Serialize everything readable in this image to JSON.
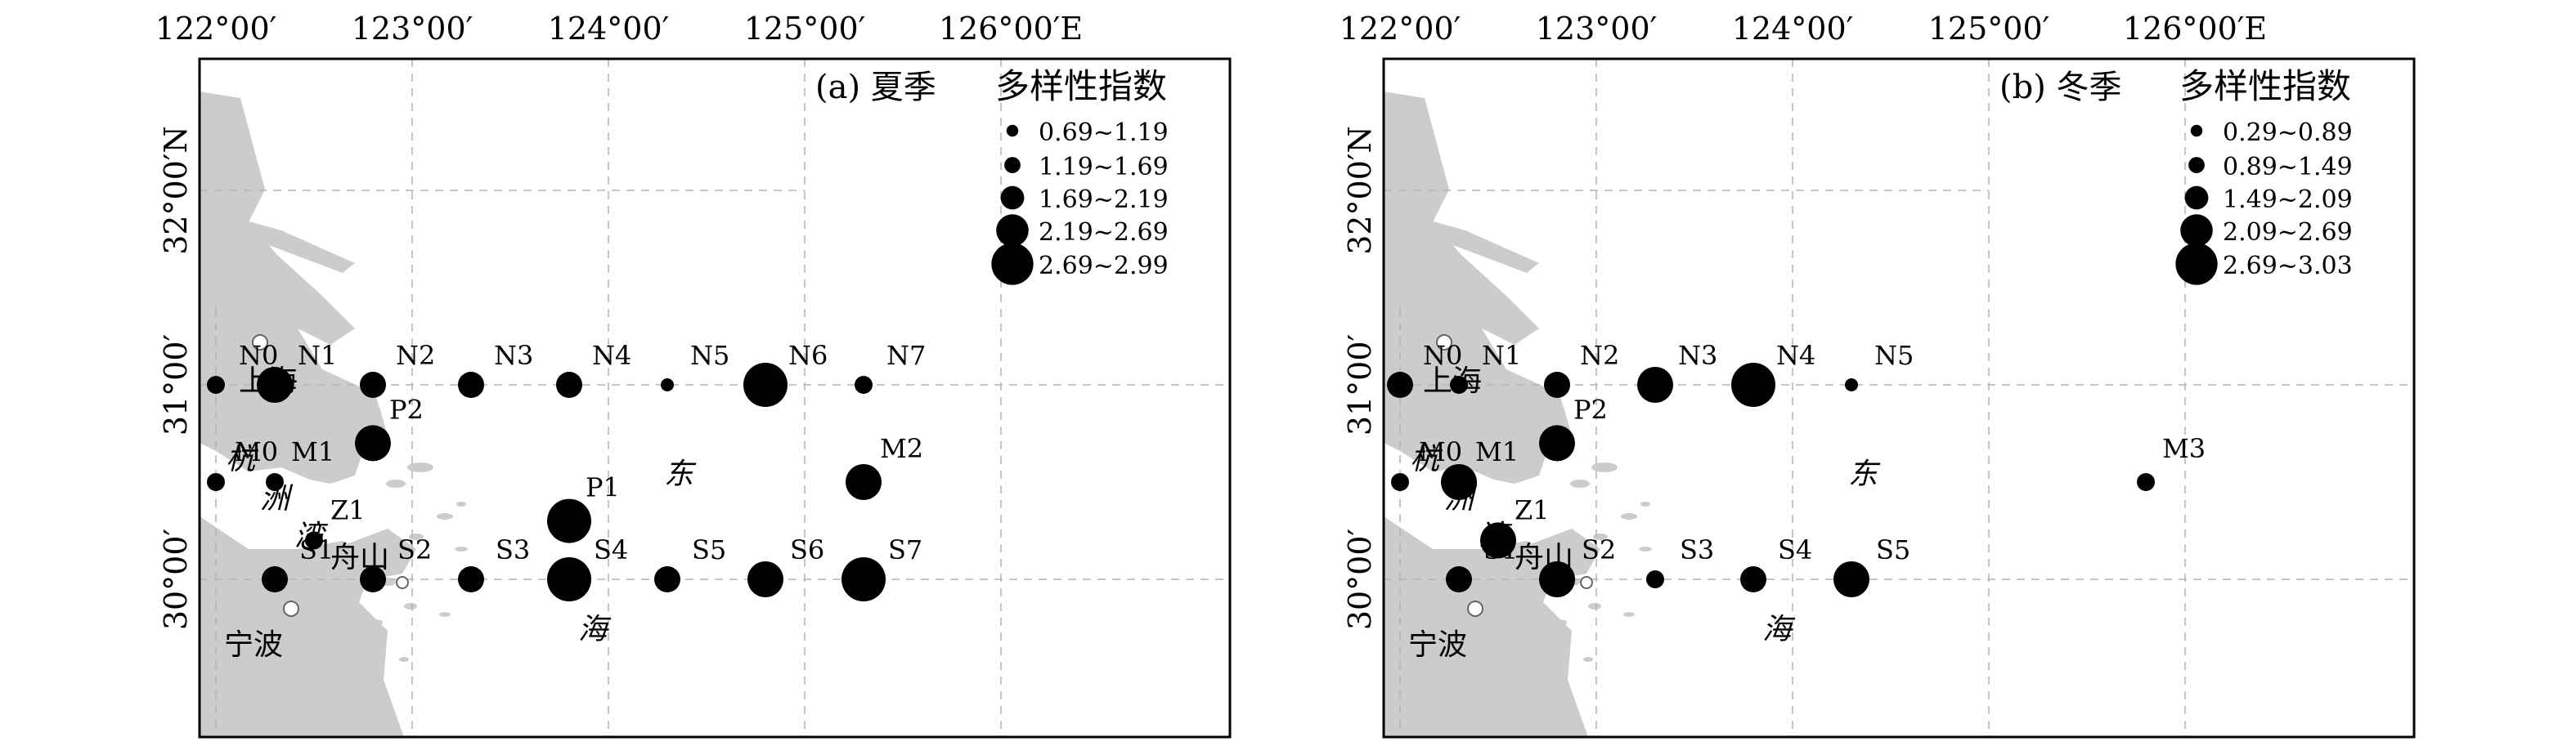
{
  "lon_labels": [
    "122°00′",
    "123°00′",
    "124°00′",
    "125°00′",
    "126°00′E"
  ],
  "lat_labels": [
    "32°00′N",
    "31°00′",
    "30°00′"
  ],
  "place_labels": {
    "shanghai": "上海",
    "ningbo": "宁波",
    "zhoushan": "舟山",
    "hangzhou_bay": [
      "杭",
      "洲",
      "湾"
    ],
    "east_sea": [
      "东",
      "海"
    ]
  },
  "colors": {
    "land": "#cccccc",
    "station": "#000000",
    "grid": "#b3b3b3",
    "city_marker": "#ffffff"
  },
  "panels": [
    {
      "title": "(a) 夏季",
      "legend_title": "多样性指数",
      "legend": [
        "0.69~1.19",
        "1.19~1.69",
        "1.69~2.19",
        "2.19~2.69",
        "2.69~2.99"
      ],
      "stations": [
        {
          "name": "N0",
          "lon": 122.0,
          "lat": 31.0,
          "class": 2
        },
        {
          "name": "N1",
          "lon": 122.3,
          "lat": 31.0,
          "class": 4
        },
        {
          "name": "N2",
          "lon": 122.8,
          "lat": 31.0,
          "class": 3
        },
        {
          "name": "N3",
          "lon": 123.3,
          "lat": 31.0,
          "class": 3
        },
        {
          "name": "N4",
          "lon": 123.8,
          "lat": 31.0,
          "class": 3
        },
        {
          "name": "N5",
          "lon": 124.3,
          "lat": 31.0,
          "class": 1
        },
        {
          "name": "N6",
          "lon": 124.8,
          "lat": 31.0,
          "class": 5
        },
        {
          "name": "N7",
          "lon": 125.3,
          "lat": 31.0,
          "class": 2
        },
        {
          "name": "P2",
          "lon": 122.8,
          "lat": 30.7,
          "class": 4
        },
        {
          "name": "M0",
          "lon": 122.0,
          "lat": 30.5,
          "class": 2
        },
        {
          "name": "M1",
          "lon": 122.3,
          "lat": 30.5,
          "class": 2
        },
        {
          "name": "M2",
          "lon": 125.3,
          "lat": 30.5,
          "class": 4
        },
        {
          "name": "P1",
          "lon": 123.8,
          "lat": 30.3,
          "class": 5
        },
        {
          "name": "Z1",
          "lon": 122.5,
          "lat": 30.2,
          "class": 2
        },
        {
          "name": "S1",
          "lon": 122.3,
          "lat": 30.0,
          "class": 3
        },
        {
          "name": "S2",
          "lon": 122.8,
          "lat": 30.0,
          "class": 3
        },
        {
          "name": "S3",
          "lon": 123.3,
          "lat": 30.0,
          "class": 3
        },
        {
          "name": "S4",
          "lon": 123.8,
          "lat": 30.0,
          "class": 5
        },
        {
          "name": "S5",
          "lon": 124.3,
          "lat": 30.0,
          "class": 3
        },
        {
          "name": "S6",
          "lon": 124.8,
          "lat": 30.0,
          "class": 4
        },
        {
          "name": "S7",
          "lon": 125.3,
          "lat": 30.0,
          "class": 5
        }
      ]
    },
    {
      "title": "(b) 冬季",
      "legend_title": "多样性指数",
      "legend": [
        "0.29~0.89",
        "0.89~1.49",
        "1.49~2.09",
        "2.09~2.69",
        "2.69~3.03"
      ],
      "stations": [
        {
          "name": "N0",
          "lon": 122.0,
          "lat": 31.0,
          "class": 3
        },
        {
          "name": "N1",
          "lon": 122.3,
          "lat": 31.0,
          "class": 2
        },
        {
          "name": "N2",
          "lon": 122.8,
          "lat": 31.0,
          "class": 3
        },
        {
          "name": "N3",
          "lon": 123.3,
          "lat": 31.0,
          "class": 4
        },
        {
          "name": "N4",
          "lon": 123.8,
          "lat": 31.0,
          "class": 5
        },
        {
          "name": "N5",
          "lon": 124.3,
          "lat": 31.0,
          "class": 1
        },
        {
          "name": "P2",
          "lon": 122.8,
          "lat": 30.7,
          "class": 4
        },
        {
          "name": "M0",
          "lon": 122.0,
          "lat": 30.5,
          "class": 2
        },
        {
          "name": "M1",
          "lon": 122.3,
          "lat": 30.5,
          "class": 4
        },
        {
          "name": "M3",
          "lon": 125.8,
          "lat": 30.5,
          "class": 2
        },
        {
          "name": "Z1",
          "lon": 122.5,
          "lat": 30.2,
          "class": 4
        },
        {
          "name": "S1",
          "lon": 122.3,
          "lat": 30.0,
          "class": 3
        },
        {
          "name": "S2",
          "lon": 122.8,
          "lat": 30.0,
          "class": 4
        },
        {
          "name": "S3",
          "lon": 123.3,
          "lat": 30.0,
          "class": 2
        },
        {
          "name": "S4",
          "lon": 123.8,
          "lat": 30.0,
          "class": 3
        },
        {
          "name": "S5",
          "lon": 124.3,
          "lat": 30.0,
          "class": 4
        }
      ]
    }
  ]
}
